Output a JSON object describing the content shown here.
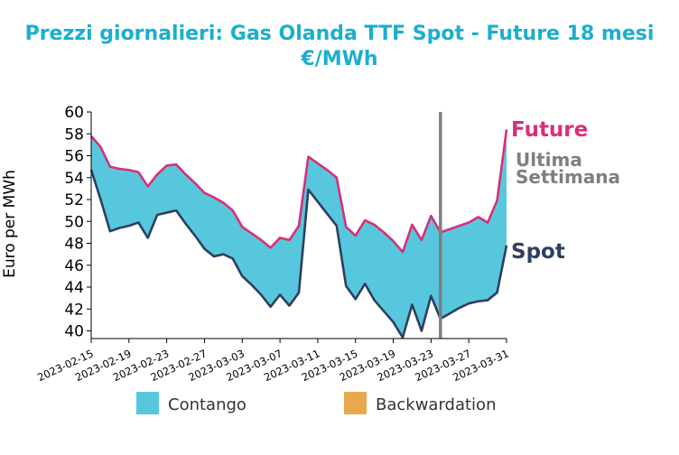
{
  "title_line1": "Prezzi giornalieri: Gas Olanda TTF Spot - Future 18 mesi",
  "title_line2": "€/MWh",
  "colors": {
    "title": "#1aaecf",
    "future": "#d6307a",
    "spot": "#2e3f60",
    "contango": "#57c7dd",
    "backwardation": "#e8a84e",
    "marker": "#7f7f7f"
  },
  "annotations": {
    "future": "Future",
    "spot": "Spot",
    "marker_line1": "Ultima",
    "marker_line2": "Settimana"
  },
  "legend": {
    "contango": "Contango",
    "backwardation": "Backwardation"
  },
  "chart_data": {
    "type": "area",
    "ylabel": "Euro per MWh",
    "xlabel": "",
    "ylim": [
      39.3,
      60
    ],
    "y_ticks": [
      40,
      42,
      44,
      46,
      48,
      50,
      52,
      54,
      56,
      58,
      60
    ],
    "x_tick_labels": [
      "2023-02-15",
      "2023-02-19",
      "2023-02-23",
      "2023-02-27",
      "2023-03-03",
      "2023-03-07",
      "2023-03-11",
      "2023-03-15",
      "2023-03-19",
      "2023-03-23",
      "2023-03-27",
      "2023-03-31"
    ],
    "x": [
      "2023-02-15",
      "2023-02-16",
      "2023-02-17",
      "2023-02-18",
      "2023-02-19",
      "2023-02-20",
      "2023-02-21",
      "2023-02-22",
      "2023-02-23",
      "2023-02-24",
      "2023-02-25",
      "2023-02-26",
      "2023-02-27",
      "2023-02-28",
      "2023-03-01",
      "2023-03-02",
      "2023-03-03",
      "2023-03-04",
      "2023-03-05",
      "2023-03-06",
      "2023-03-07",
      "2023-03-08",
      "2023-03-09",
      "2023-03-10",
      "2023-03-11",
      "2023-03-12",
      "2023-03-13",
      "2023-03-14",
      "2023-03-15",
      "2023-03-16",
      "2023-03-17",
      "2023-03-18",
      "2023-03-19",
      "2023-03-20",
      "2023-03-21",
      "2023-03-22",
      "2023-03-23",
      "2023-03-24",
      "2023-03-25",
      "2023-03-26",
      "2023-03-27",
      "2023-03-28",
      "2023-03-29",
      "2023-03-30",
      "2023-03-31"
    ],
    "series": [
      {
        "name": "Future",
        "values": [
          57.8,
          56.8,
          55.0,
          54.8,
          54.7,
          54.5,
          53.2,
          54.3,
          55.1,
          55.2,
          54.3,
          53.5,
          52.6,
          52.2,
          51.7,
          51.0,
          49.5,
          48.9,
          48.3,
          47.6,
          48.5,
          48.3,
          49.6,
          55.9,
          55.3,
          54.7,
          54.0,
          49.5,
          48.7,
          50.1,
          49.7,
          49.0,
          48.2,
          47.2,
          49.7,
          48.3,
          50.5,
          49.0,
          49.3,
          49.6,
          49.9,
          50.4,
          49.9,
          51.9,
          58.4
        ]
      },
      {
        "name": "Spot",
        "values": [
          54.7,
          52.0,
          49.1,
          49.4,
          49.6,
          49.9,
          48.5,
          50.6,
          50.8,
          51.0,
          49.8,
          48.7,
          47.5,
          46.8,
          47.0,
          46.6,
          45.0,
          44.2,
          43.3,
          42.2,
          43.3,
          42.3,
          43.5,
          52.9,
          51.8,
          50.7,
          49.6,
          44.1,
          42.9,
          44.3,
          42.8,
          41.8,
          40.8,
          39.4,
          42.4,
          40.0,
          43.2,
          41.1,
          41.6,
          42.1,
          42.5,
          42.7,
          42.8,
          43.5,
          47.8
        ]
      }
    ],
    "marker_date": "2023-03-24",
    "grid": false
  }
}
